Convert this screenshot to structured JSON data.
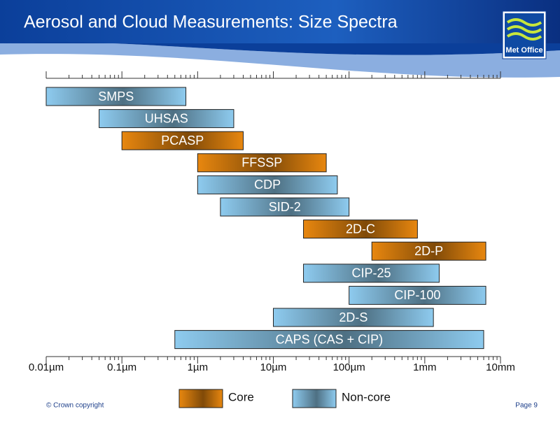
{
  "header": {
    "title": "Aerosol and Cloud Measurements: Size Spectra",
    "logo": "Met Office"
  },
  "chart_data": {
    "type": "range",
    "categories": [
      "SMPS",
      "UHSAS",
      "PCASP",
      "FFSSP",
      "CDP",
      "SID-2",
      "2D-C",
      "2D-P",
      "CIP-25",
      "CIP-100",
      "2D-S",
      "CAPS (CAS + CIP)"
    ],
    "series": [
      {
        "name": "Core",
        "color": "#e8870f",
        "low": [
          null,
          null,
          0.1,
          1,
          null,
          null,
          25,
          200,
          null,
          null,
          null,
          null
        ],
        "high": [
          null,
          null,
          4,
          50,
          null,
          null,
          800,
          6400,
          null,
          null,
          null,
          null
        ]
      },
      {
        "name": "Non-core",
        "color": "#8ecbef",
        "low": [
          0.01,
          0.05,
          null,
          null,
          1,
          2,
          null,
          null,
          25,
          100,
          10,
          0.5
        ],
        "high": [
          0.7,
          3,
          null,
          null,
          70,
          100,
          null,
          null,
          1550,
          6400,
          1300,
          6000
        ]
      }
    ],
    "log_scale": true,
    "xlim": [
      0.01,
      10000
    ],
    "xticks": [
      {
        "value": 0.01,
        "label": "0.01µm"
      },
      {
        "value": 0.1,
        "label": "0.1µm"
      },
      {
        "value": 1,
        "label": "1µm"
      },
      {
        "value": 10,
        "label": "10µm"
      },
      {
        "value": 100,
        "label": "100µm"
      },
      {
        "value": 1000,
        "label": "1mm"
      },
      {
        "value": 10000,
        "label": "10mm"
      }
    ]
  },
  "footer": {
    "copyright": "© Crown copyright",
    "page": "Page 9"
  }
}
